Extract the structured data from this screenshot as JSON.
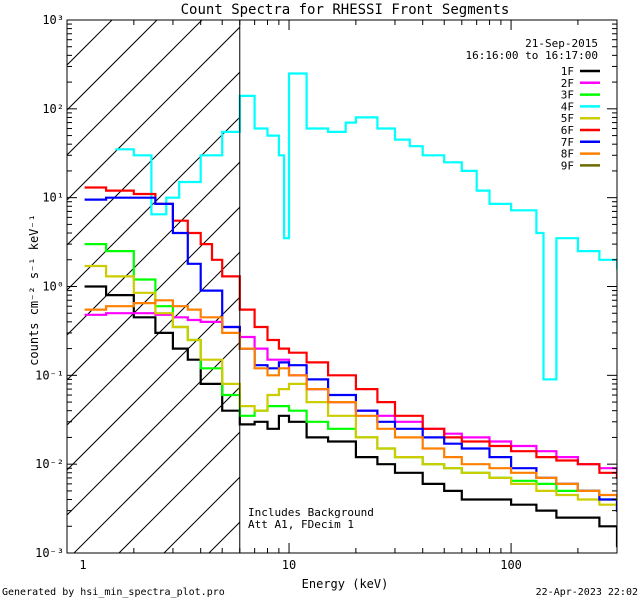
{
  "chart_data": {
    "type": "line",
    "title": "Count Spectra for RHESSI Front Segments",
    "xlabel": "Energy (keV)",
    "ylabel": "counts cm⁻² s⁻¹ keV⁻¹",
    "xscale": "log",
    "yscale": "log",
    "xlim": [
      1,
      300
    ],
    "ylim": [
      0.001,
      1000
    ],
    "x_ticks": [
      {
        "v": 10,
        "label": "10"
      },
      {
        "v": 100,
        "label": "100"
      }
    ],
    "y_ticks": [
      {
        "v": 0.001,
        "label": "10⁻³"
      },
      {
        "v": 0.01,
        "label": "10⁻²"
      },
      {
        "v": 0.1,
        "label": "10⁻¹"
      },
      {
        "v": 1,
        "label": "10⁰"
      },
      {
        "v": 10,
        "label": "10¹"
      },
      {
        "v": 100,
        "label": "10²"
      },
      {
        "v": 1000,
        "label": "10³"
      }
    ],
    "x_edge_label": "1",
    "date": "21-Sep-2015",
    "time_range": "16:16:00 to 16:17:00",
    "hatched_below_energy": 6,
    "annotations": [
      "Includes Background",
      "Att A1, FDecim 1"
    ],
    "footer_left": "Generated by hsi_min_spectra_plot.pro",
    "footer_right": "22-Apr-2023 22:02",
    "series": [
      {
        "name": "1F",
        "color": "#000000",
        "x": [
          1.2,
          1.5,
          2,
          2.5,
          3,
          3.5,
          4,
          5,
          6,
          7,
          8,
          9,
          10,
          12,
          15,
          20,
          25,
          30,
          40,
          50,
          60,
          80,
          100,
          130,
          160,
          200,
          250,
          300
        ],
        "y": [
          1.0,
          0.8,
          0.45,
          0.3,
          0.2,
          0.15,
          0.08,
          0.04,
          0.028,
          0.03,
          0.025,
          0.035,
          0.03,
          0.02,
          0.018,
          0.012,
          0.01,
          0.008,
          0.006,
          0.005,
          0.004,
          0.004,
          0.0035,
          0.003,
          0.0025,
          0.0025,
          0.002,
          0.0012
        ]
      },
      {
        "name": "2F",
        "color": "#ff00ff",
        "x": [
          1.2,
          1.5,
          2,
          2.5,
          3,
          3.5,
          4,
          5,
          6,
          7,
          8,
          10,
          12,
          15,
          20,
          25,
          30,
          40,
          50,
          60,
          80,
          100,
          130,
          160,
          200,
          250,
          300
        ],
        "y": [
          0.48,
          0.5,
          0.5,
          0.48,
          0.45,
          0.42,
          0.4,
          0.35,
          0.27,
          0.2,
          0.15,
          0.1,
          0.07,
          0.05,
          0.04,
          0.035,
          0.03,
          0.025,
          0.022,
          0.02,
          0.018,
          0.016,
          0.014,
          0.012,
          0.01,
          0.009,
          0.007
        ]
      },
      {
        "name": "3F",
        "color": "#00ff00",
        "x": [
          1.2,
          1.5,
          2,
          2.5,
          3,
          3.5,
          4,
          5,
          6,
          7,
          8,
          9,
          10,
          12,
          15,
          20,
          25,
          30,
          40,
          50,
          60,
          80,
          100,
          130,
          160,
          200,
          250,
          300
        ],
        "y": [
          3.0,
          2.5,
          1.2,
          0.6,
          0.35,
          0.25,
          0.12,
          0.06,
          0.035,
          0.04,
          0.045,
          0.045,
          0.04,
          0.03,
          0.025,
          0.02,
          0.015,
          0.012,
          0.01,
          0.009,
          0.008,
          0.007,
          0.0065,
          0.006,
          0.005,
          0.005,
          0.004,
          0.003
        ]
      },
      {
        "name": "4F",
        "color": "#00ffff",
        "x": [
          1.65,
          2,
          2.4,
          2.8,
          3.2,
          4,
          5,
          6,
          7,
          8,
          9,
          9.5,
          10,
          12,
          15,
          18,
          20,
          25,
          30,
          35,
          40,
          50,
          60,
          70,
          80,
          100,
          130,
          140,
          160,
          200,
          250,
          300
        ],
        "y": [
          35,
          30,
          6.5,
          10,
          15,
          30,
          55,
          140,
          60,
          50,
          30,
          3.5,
          250,
          60,
          55,
          70,
          80,
          60,
          45,
          38,
          30,
          25,
          20,
          12,
          8.5,
          7.2,
          4.0,
          0.09,
          3.5,
          2.5,
          2.0,
          1.6
        ]
      },
      {
        "name": "5F",
        "color": "#cccc00",
        "x": [
          1.2,
          1.5,
          2,
          2.5,
          3,
          3.5,
          4,
          5,
          6,
          7,
          8,
          9,
          10,
          12,
          15,
          20,
          25,
          30,
          40,
          50,
          60,
          80,
          100,
          130,
          160,
          200,
          250,
          300
        ],
        "y": [
          1.7,
          1.3,
          0.85,
          0.5,
          0.35,
          0.25,
          0.15,
          0.08,
          0.045,
          0.04,
          0.06,
          0.07,
          0.08,
          0.05,
          0.035,
          0.02,
          0.015,
          0.012,
          0.01,
          0.009,
          0.008,
          0.007,
          0.006,
          0.005,
          0.0045,
          0.004,
          0.0035,
          0.003
        ]
      },
      {
        "name": "6F",
        "color": "#ff0000",
        "x": [
          1.2,
          1.5,
          2,
          2.5,
          3,
          3.5,
          4,
          4.5,
          5,
          6,
          7,
          8,
          9,
          10,
          12,
          15,
          20,
          25,
          30,
          40,
          50,
          60,
          80,
          100,
          130,
          160,
          200,
          250,
          300
        ],
        "y": [
          13,
          12,
          11,
          8.5,
          5.5,
          4.0,
          3.0,
          2.0,
          1.3,
          0.55,
          0.35,
          0.25,
          0.2,
          0.18,
          0.14,
          0.1,
          0.07,
          0.05,
          0.035,
          0.025,
          0.02,
          0.018,
          0.016,
          0.014,
          0.012,
          0.011,
          0.01,
          0.008,
          0.007
        ]
      },
      {
        "name": "7F",
        "color": "#0000ff",
        "x": [
          1.2,
          1.5,
          2,
          2.5,
          3,
          3.5,
          4,
          5,
          6,
          7,
          8,
          9,
          10,
          12,
          15,
          20,
          25,
          30,
          40,
          50,
          60,
          80,
          100,
          130,
          160,
          200,
          250,
          300
        ],
        "y": [
          9.5,
          10,
          10,
          8.5,
          4.0,
          1.8,
          0.9,
          0.35,
          0.2,
          0.13,
          0.12,
          0.14,
          0.13,
          0.09,
          0.06,
          0.04,
          0.03,
          0.025,
          0.02,
          0.017,
          0.015,
          0.012,
          0.009,
          0.007,
          0.006,
          0.005,
          0.004,
          0.003
        ]
      },
      {
        "name": "8F",
        "color": "#ff8000",
        "x": [
          1.2,
          1.5,
          2,
          2.5,
          3,
          3.5,
          4,
          5,
          6,
          7,
          8,
          9,
          10,
          12,
          15,
          20,
          25,
          30,
          40,
          50,
          60,
          80,
          100,
          130,
          160,
          200,
          250,
          300
        ],
        "y": [
          0.55,
          0.6,
          0.65,
          0.7,
          0.6,
          0.55,
          0.45,
          0.3,
          0.2,
          0.12,
          0.1,
          0.12,
          0.1,
          0.07,
          0.05,
          0.035,
          0.025,
          0.02,
          0.015,
          0.012,
          0.01,
          0.009,
          0.008,
          0.007,
          0.006,
          0.005,
          0.0045,
          0.004
        ]
      },
      {
        "name": "9F",
        "color": "#6b6b00",
        "x": [],
        "y": []
      }
    ]
  }
}
